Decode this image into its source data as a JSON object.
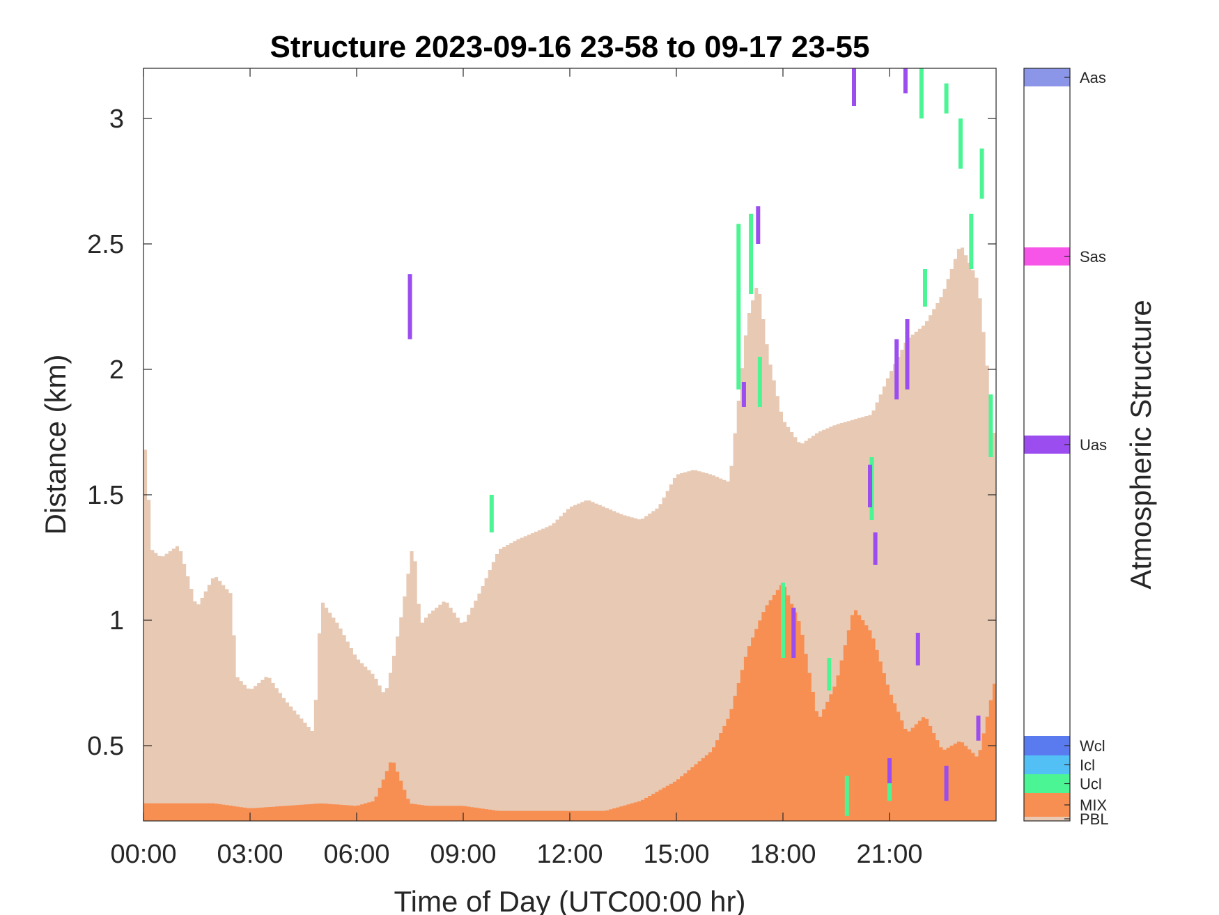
{
  "chart_data": {
    "type": "area",
    "title": "Structure 2023-09-16 23-58 to 09-17 23-55",
    "xlabel": "Time of Day (UTC00:00 hr)",
    "ylabel": "Distance (km)",
    "colorbar_label": "Atmospheric Structure",
    "xlim_hours": [
      0,
      24
    ],
    "ylim_km": [
      0.2,
      3.2
    ],
    "x_ticks": [
      "00:00",
      "03:00",
      "06:00",
      "09:00",
      "12:00",
      "15:00",
      "18:00",
      "21:00"
    ],
    "y_ticks": [
      "0.5",
      "1",
      "1.5",
      "2",
      "2.5",
      "3"
    ],
    "y_tick_values": [
      0.5,
      1,
      1.5,
      2,
      2.5,
      3
    ],
    "grid": false,
    "colors": {
      "PBL": "#e8c9b4",
      "MIX": "#f88f52",
      "Ucl": "#4cf594",
      "Icl": "#52bff5",
      "Wcl": "#5a7bf0",
      "Uas": "#9b4df0",
      "Sas": "#f754e8",
      "Aas": "#8c96e8"
    },
    "classes": [
      {
        "name": "PBL",
        "label": "PBL",
        "color": "#e8c9b4"
      },
      {
        "name": "MIX",
        "label": "MIX",
        "color": "#f88f52"
      },
      {
        "name": "Ucl",
        "label": "Ucl",
        "color": "#4cf594"
      },
      {
        "name": "Icl",
        "label": "Icl",
        "color": "#52bff5"
      },
      {
        "name": "Wcl",
        "label": "Wcl",
        "color": "#5a7bf0"
      },
      {
        "name": "Uas",
        "label": "Uas",
        "color": "#9b4df0"
      },
      {
        "name": "Sas",
        "label": "Sas",
        "color": "#f754e8"
      },
      {
        "name": "Aas",
        "label": "Aas",
        "color": "#8c96e8"
      }
    ],
    "pbl_top_km": {
      "hours": [
        0.0,
        0.25,
        0.5,
        1.0,
        1.5,
        2.0,
        2.5,
        2.6,
        3.0,
        3.5,
        4.0,
        4.5,
        4.8,
        5.0,
        5.5,
        6.0,
        6.5,
        6.8,
        7.0,
        7.3,
        7.6,
        7.8,
        8.0,
        8.5,
        9.0,
        9.5,
        10.0,
        10.5,
        11.0,
        11.5,
        12.0,
        12.5,
        13.0,
        13.5,
        14.0,
        14.5,
        15.0,
        15.5,
        16.0,
        16.5,
        17.0,
        17.3,
        17.6,
        18.0,
        18.5,
        19.0,
        19.5,
        20.0,
        20.5,
        21.0,
        21.5,
        22.0,
        22.5,
        23.0,
        23.5,
        24.0
      ],
      "values": [
        1.78,
        1.28,
        1.25,
        1.3,
        1.05,
        1.18,
        1.1,
        0.78,
        0.72,
        0.78,
        0.68,
        0.6,
        0.55,
        1.08,
        0.98,
        0.85,
        0.78,
        0.7,
        0.82,
        1.05,
        1.32,
        0.98,
        1.02,
        1.08,
        0.98,
        1.12,
        1.28,
        1.32,
        1.35,
        1.38,
        1.45,
        1.48,
        1.45,
        1.42,
        1.4,
        1.45,
        1.58,
        1.6,
        1.58,
        1.55,
        2.2,
        2.35,
        2.05,
        1.8,
        1.7,
        1.75,
        1.78,
        1.8,
        1.82,
        1.98,
        2.12,
        2.18,
        2.3,
        2.5,
        2.35,
        1.68
      ]
    },
    "mix_top_km": {
      "hours": [
        0.0,
        1.0,
        2.0,
        3.0,
        4.0,
        5.0,
        6.0,
        6.5,
        7.0,
        7.5,
        8.0,
        9.0,
        10.0,
        11.0,
        12.0,
        13.0,
        14.0,
        14.5,
        15.0,
        15.5,
        16.0,
        16.5,
        17.0,
        17.5,
        18.0,
        18.5,
        19.0,
        19.5,
        20.0,
        20.5,
        21.0,
        21.5,
        22.0,
        22.5,
        23.0,
        23.5,
        24.0
      ],
      "values": [
        0.27,
        0.27,
        0.27,
        0.25,
        0.26,
        0.27,
        0.26,
        0.28,
        0.45,
        0.27,
        0.26,
        0.26,
        0.24,
        0.24,
        0.24,
        0.24,
        0.28,
        0.32,
        0.36,
        0.42,
        0.48,
        0.62,
        0.88,
        1.05,
        1.15,
        0.98,
        0.6,
        0.75,
        1.05,
        0.95,
        0.72,
        0.55,
        0.62,
        0.48,
        0.52,
        0.45,
        0.78
      ]
    },
    "ucl_segments": [
      {
        "hour": 9.8,
        "bottom_km": 1.35,
        "top_km": 1.5
      },
      {
        "hour": 16.75,
        "bottom_km": 1.92,
        "top_km": 2.58
      },
      {
        "hour": 17.1,
        "bottom_km": 2.3,
        "top_km": 2.62
      },
      {
        "hour": 17.35,
        "bottom_km": 1.85,
        "top_km": 2.05
      },
      {
        "hour": 18.0,
        "bottom_km": 0.85,
        "top_km": 1.15
      },
      {
        "hour": 19.3,
        "bottom_km": 0.72,
        "top_km": 0.85
      },
      {
        "hour": 19.8,
        "bottom_km": 0.22,
        "top_km": 0.38
      },
      {
        "hour": 20.5,
        "bottom_km": 1.4,
        "top_km": 1.65
      },
      {
        "hour": 21.0,
        "bottom_km": 0.28,
        "top_km": 0.42
      },
      {
        "hour": 21.5,
        "bottom_km": 1.95,
        "top_km": 2.18
      },
      {
        "hour": 22.0,
        "bottom_km": 2.25,
        "top_km": 2.4
      },
      {
        "hour": 21.9,
        "bottom_km": 3.0,
        "top_km": 3.2
      },
      {
        "hour": 22.6,
        "bottom_km": 3.02,
        "top_km": 3.14
      },
      {
        "hour": 23.0,
        "bottom_km": 2.8,
        "top_km": 3.0
      },
      {
        "hour": 23.3,
        "bottom_km": 2.4,
        "top_km": 2.62
      },
      {
        "hour": 23.6,
        "bottom_km": 2.68,
        "top_km": 2.88
      },
      {
        "hour": 23.85,
        "bottom_km": 1.65,
        "top_km": 1.9
      }
    ],
    "uas_segments": [
      {
        "hour": 7.5,
        "bottom_km": 2.12,
        "top_km": 2.38
      },
      {
        "hour": 16.9,
        "bottom_km": 1.85,
        "top_km": 1.95
      },
      {
        "hour": 17.3,
        "bottom_km": 2.5,
        "top_km": 2.65
      },
      {
        "hour": 18.3,
        "bottom_km": 0.85,
        "top_km": 1.05
      },
      {
        "hour": 20.0,
        "bottom_km": 3.05,
        "top_km": 3.2
      },
      {
        "hour": 20.45,
        "bottom_km": 1.45,
        "top_km": 1.62
      },
      {
        "hour": 20.6,
        "bottom_km": 1.22,
        "top_km": 1.35
      },
      {
        "hour": 21.0,
        "bottom_km": 0.35,
        "top_km": 0.45
      },
      {
        "hour": 21.2,
        "bottom_km": 1.88,
        "top_km": 2.12
      },
      {
        "hour": 21.5,
        "bottom_km": 1.92,
        "top_km": 2.2
      },
      {
        "hour": 21.45,
        "bottom_km": 3.1,
        "top_km": 3.2
      },
      {
        "hour": 21.8,
        "bottom_km": 0.82,
        "top_km": 0.95
      },
      {
        "hour": 22.6,
        "bottom_km": 0.28,
        "top_km": 0.42
      },
      {
        "hour": 23.5,
        "bottom_km": 0.52,
        "top_km": 0.62
      }
    ]
  }
}
